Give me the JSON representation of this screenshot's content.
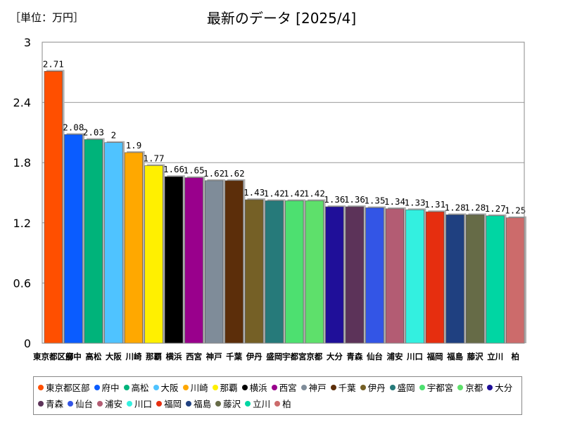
{
  "unit_label": "［単位：万円］",
  "chart_data": {
    "type": "bar",
    "title": "最新のデータ [2025/4]",
    "xlabel": "",
    "ylabel": "",
    "ylim": [
      0,
      3
    ],
    "yticks": [
      "0",
      "0.6",
      "1.2",
      "1.8",
      "2.4",
      "3"
    ],
    "categories": [
      "東京都区部",
      "府中",
      "高松",
      "大阪",
      "川崎",
      "那覇",
      "横浜",
      "西宮",
      "神戸",
      "千葉",
      "伊丹",
      "盛岡",
      "宇都宮",
      "京都",
      "大分",
      "青森",
      "仙台",
      "浦安",
      "川口",
      "福岡",
      "福島",
      "藤沢",
      "立川",
      "柏"
    ],
    "values": [
      2.71,
      2.08,
      2.03,
      2,
      1.9,
      1.77,
      1.66,
      1.65,
      1.62,
      1.62,
      1.43,
      1.42,
      1.42,
      1.42,
      1.36,
      1.36,
      1.35,
      1.34,
      1.33,
      1.31,
      1.28,
      1.28,
      1.27,
      1.25
    ],
    "value_labels": [
      "2.71",
      "2.08",
      "2.03",
      "2",
      "1.9",
      "1.77",
      "1.66",
      "1.65",
      "1.62",
      "1.62",
      "1.43",
      "1.42",
      "1.42",
      "1.42",
      "1.36",
      "1.36",
      "1.35",
      "1.34",
      "1.33",
      "1.31",
      "1.28",
      "1.28",
      "1.27",
      "1.25"
    ],
    "colors": [
      "#ff4f00",
      "#0a5cff",
      "#00b37a",
      "#4fc3ff",
      "#ffa800",
      "#fff000",
      "#000000",
      "#99008c",
      "#7f8c99",
      "#5c2e0a",
      "#756026",
      "#267a7a",
      "#4de070",
      "#5ee06b",
      "#1f0f99",
      "#5c3359",
      "#3355e6",
      "#b35c73",
      "#33f0e0",
      "#e62e0f",
      "#1f4080",
      "#666b47",
      "#00d6a3",
      "#cc6b6b"
    ],
    "legend_position": "bottom"
  }
}
